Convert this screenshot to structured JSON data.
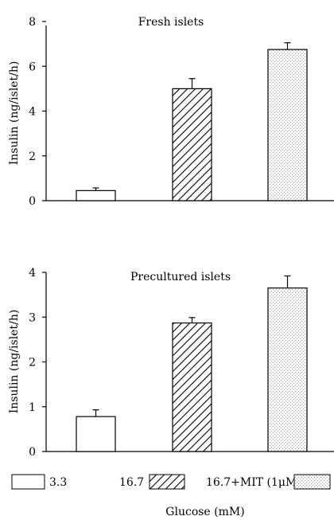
{
  "chart_data": [
    {
      "type": "bar",
      "title": "Fresh islets",
      "ylabel": "Insulin (ng/islet/h)",
      "ylim": [
        0,
        8
      ],
      "yticks": [
        0,
        2,
        4,
        6,
        8
      ],
      "categories": [
        "3.3",
        "16.7",
        "16.7+MIT (1µM)"
      ],
      "values": [
        0.45,
        5.0,
        6.75
      ],
      "errors": [
        0.12,
        0.45,
        0.3
      ]
    },
    {
      "type": "bar",
      "title": "Precultured islets",
      "ylabel": "Insulin (ng/islet/h)",
      "ylim": [
        0,
        4
      ],
      "yticks": [
        0,
        1,
        2,
        3,
        4
      ],
      "categories": [
        "3.3",
        "16.7",
        "16.7+MIT (1µM)"
      ],
      "values": [
        0.78,
        2.87,
        3.65
      ],
      "errors": [
        0.15,
        0.12,
        0.27
      ]
    }
  ],
  "legend": {
    "items": [
      {
        "label": "3.3",
        "pattern": "white"
      },
      {
        "label": "16.7",
        "pattern": "hatch"
      },
      {
        "label": "16.7+MIT (1μM)",
        "pattern": "dots"
      }
    ]
  },
  "xlabel": "Glucose (mM)"
}
